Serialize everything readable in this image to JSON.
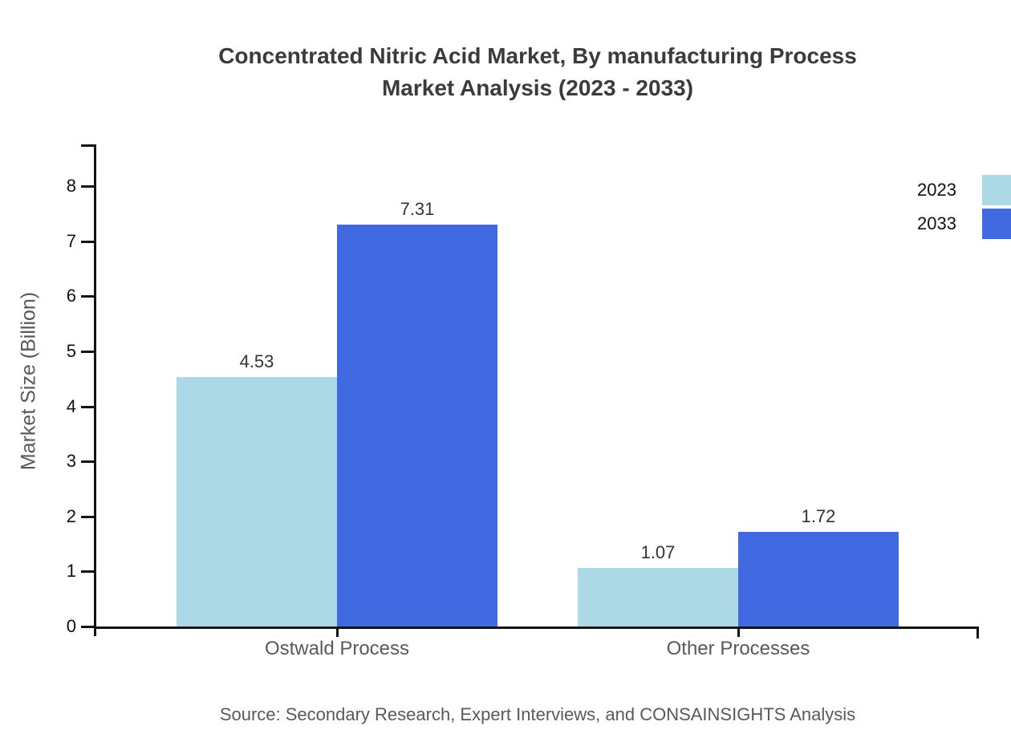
{
  "title": {
    "line1": "Concentrated Nitric Acid Market, By manufacturing Process",
    "line2": "Market Analysis (2023 - 2033)"
  },
  "source": "Source: Secondary Research, Expert Interviews, and CONSAINSIGHTS Analysis",
  "chart_data": {
    "type": "bar",
    "title": "Concentrated Nitric Acid Market, By manufacturing Process Market Analysis (2023 - 2033)",
    "categories": [
      "Ostwald Process",
      "Other Processes"
    ],
    "series": [
      {
        "name": "2023",
        "color": "#ADD8E6",
        "values": [
          4.53,
          1.07
        ]
      },
      {
        "name": "2033",
        "color": "#4169E1",
        "values": [
          7.31,
          1.72
        ]
      }
    ],
    "value_labels": [
      "4.53",
      "7.31",
      "1.07",
      "1.72"
    ],
    "xlabel": "",
    "ylabel": "Market Size (Billion)",
    "ylim": [
      0,
      8
    ],
    "yticks": [
      0,
      1,
      2,
      3,
      4,
      5,
      6,
      7,
      8
    ],
    "grid": false,
    "legend_position": "top-right"
  },
  "colors": {
    "series_2023": "#ADD8E6",
    "series_2033": "#4169E1",
    "axis": "#111111",
    "title_text": "#3b3b3b",
    "muted_text": "#595959",
    "value_text": "#333333"
  }
}
